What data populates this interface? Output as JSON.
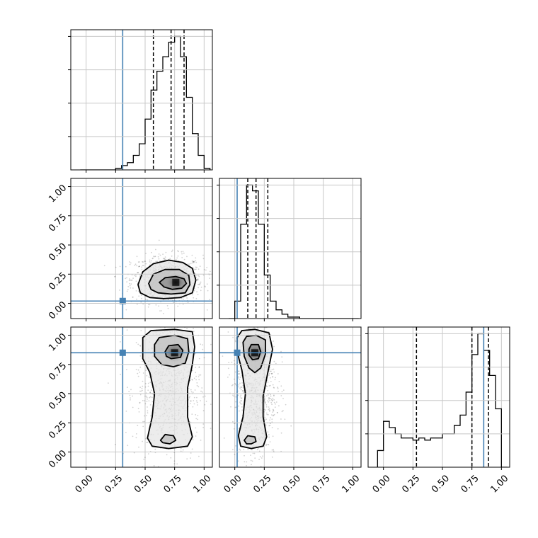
{
  "chart_data": {
    "type": "corner",
    "parameters": [
      "",
      "",
      ""
    ],
    "truths": [
      0.31,
      0.02,
      0.85
    ],
    "quantiles": [
      [
        0.57,
        0.72,
        0.83
      ],
      [
        0.11,
        0.18,
        0.28
      ],
      [
        0.28,
        0.75,
        0.89
      ]
    ],
    "ranges": [
      [
        -0.13,
        1.07
      ],
      [
        -0.13,
        1.07
      ],
      [
        -0.13,
        1.07
      ]
    ],
    "grid": true,
    "colors": {
      "truth": "#4682b4",
      "hist": "#000000",
      "quantile": "#000000",
      "density": "#000000",
      "grid": "#c8c8c8"
    },
    "ticks": {
      "values": [
        0.0,
        0.25,
        0.5,
        0.75,
        1.0
      ],
      "labels": [
        "0.00",
        "0.25",
        "0.50",
        "0.75",
        "1.00"
      ]
    },
    "histograms": [
      {
        "param": 0,
        "bin_edges": [
          -0.05,
          0.0,
          0.05,
          0.1,
          0.15,
          0.2,
          0.25,
          0.3,
          0.35,
          0.4,
          0.45,
          0.5,
          0.55,
          0.6,
          0.65,
          0.7,
          0.75,
          0.8,
          0.85,
          0.9,
          0.95,
          1.0,
          1.05
        ],
        "counts": [
          0,
          0,
          0,
          0,
          0,
          0,
          1,
          3,
          5,
          10,
          18,
          35,
          55,
          68,
          78,
          88,
          92,
          78,
          50,
          25,
          10,
          1
        ]
      },
      {
        "param": 1,
        "bin_edges": [
          -0.05,
          0.0,
          0.05,
          0.1,
          0.15,
          0.2,
          0.25,
          0.3,
          0.35,
          0.4,
          0.45,
          0.5,
          0.55,
          0.6,
          0.65,
          0.7,
          0.75,
          0.8,
          0.85,
          0.9,
          0.95,
          1.0,
          1.05
        ],
        "counts": [
          0,
          12,
          65,
          92,
          88,
          65,
          30,
          12,
          6,
          3,
          1,
          1,
          0,
          0,
          0,
          0,
          0,
          0,
          0,
          0,
          0,
          0
        ]
      },
      {
        "param": 2,
        "bin_edges": [
          -0.05,
          0.0,
          0.05,
          0.1,
          0.15,
          0.2,
          0.25,
          0.3,
          0.35,
          0.4,
          0.45,
          0.5,
          0.55,
          0.6,
          0.65,
          0.7,
          0.75,
          0.8,
          0.85,
          0.9,
          0.95,
          1.0,
          1.05
        ],
        "counts": [
          8,
          22,
          19,
          16,
          14,
          14,
          13,
          14,
          13,
          14,
          14,
          16,
          16,
          20,
          25,
          36,
          54,
          64,
          56,
          44,
          28,
          0
        ]
      }
    ],
    "panels_2d": [
      {
        "x_param": 0,
        "y_param": 1,
        "peak": [
          0.76,
          0.18
        ],
        "contours": [
          [
            [
              0.44,
              0.16
            ],
            [
              0.48,
              0.27
            ],
            [
              0.57,
              0.34
            ],
            [
              0.7,
              0.37
            ],
            [
              0.82,
              0.35
            ],
            [
              0.9,
              0.3
            ],
            [
              0.93,
              0.2
            ],
            [
              0.9,
              0.09
            ],
            [
              0.8,
              0.05
            ],
            [
              0.66,
              0.04
            ],
            [
              0.54,
              0.05
            ],
            [
              0.46,
              0.09
            ]
          ],
          [
            [
              0.53,
              0.17
            ],
            [
              0.57,
              0.25
            ],
            [
              0.67,
              0.29
            ],
            [
              0.79,
              0.29
            ],
            [
              0.87,
              0.24
            ],
            [
              0.88,
              0.16
            ],
            [
              0.84,
              0.09
            ],
            [
              0.72,
              0.08
            ],
            [
              0.61,
              0.09
            ],
            [
              0.55,
              0.12
            ]
          ],
          [
            [
              0.62,
              0.18
            ],
            [
              0.67,
              0.22
            ],
            [
              0.76,
              0.23
            ],
            [
              0.83,
              0.21
            ],
            [
              0.85,
              0.17
            ],
            [
              0.81,
              0.13
            ],
            [
              0.73,
              0.12
            ],
            [
              0.66,
              0.14
            ]
          ]
        ]
      },
      {
        "x_param": 0,
        "y_param": 2,
        "peak": [
          0.75,
          0.85
        ],
        "contours": [
          [
            [
              0.48,
              0.98
            ],
            [
              0.55,
              1.04
            ],
            [
              0.75,
              1.05
            ],
            [
              0.9,
              1.03
            ],
            [
              0.92,
              0.9
            ],
            [
              0.9,
              0.75
            ],
            [
              0.86,
              0.55
            ],
            [
              0.86,
              0.3
            ],
            [
              0.9,
              0.13
            ],
            [
              0.86,
              0.05
            ],
            [
              0.7,
              0.03
            ],
            [
              0.56,
              0.05
            ],
            [
              0.52,
              0.12
            ],
            [
              0.56,
              0.3
            ],
            [
              0.58,
              0.5
            ],
            [
              0.54,
              0.68
            ],
            [
              0.48,
              0.8
            ]
          ],
          [
            [
              0.58,
              0.92
            ],
            [
              0.62,
              0.98
            ],
            [
              0.75,
              1.0
            ],
            [
              0.86,
              0.97
            ],
            [
              0.87,
              0.86
            ],
            [
              0.84,
              0.76
            ],
            [
              0.74,
              0.73
            ],
            [
              0.64,
              0.75
            ],
            [
              0.58,
              0.82
            ]
          ],
          [
            [
              0.67,
              0.86
            ],
            [
              0.7,
              0.91
            ],
            [
              0.78,
              0.92
            ],
            [
              0.82,
              0.87
            ],
            [
              0.8,
              0.81
            ],
            [
              0.72,
              0.8
            ],
            [
              0.68,
              0.82
            ]
          ],
          [
            [
              0.63,
              0.1
            ],
            [
              0.67,
              0.15
            ],
            [
              0.74,
              0.14
            ],
            [
              0.76,
              0.1
            ],
            [
              0.71,
              0.07
            ],
            [
              0.65,
              0.08
            ]
          ]
        ]
      },
      {
        "x_param": 1,
        "y_param": 2,
        "peak": [
          0.17,
          0.85
        ],
        "contours": [
          [
            [
              0.02,
              0.98
            ],
            [
              0.06,
              1.04
            ],
            [
              0.17,
              1.05
            ],
            [
              0.29,
              1.02
            ],
            [
              0.32,
              0.88
            ],
            [
              0.28,
              0.68
            ],
            [
              0.24,
              0.48
            ],
            [
              0.24,
              0.3
            ],
            [
              0.27,
              0.13
            ],
            [
              0.24,
              0.05
            ],
            [
              0.14,
              0.03
            ],
            [
              0.05,
              0.05
            ],
            [
              0.03,
              0.14
            ],
            [
              0.07,
              0.3
            ],
            [
              0.09,
              0.5
            ],
            [
              0.06,
              0.7
            ],
            [
              0.02,
              0.86
            ]
          ],
          [
            [
              0.07,
              0.94
            ],
            [
              0.1,
              0.99
            ],
            [
              0.18,
              1.0
            ],
            [
              0.26,
              0.96
            ],
            [
              0.26,
              0.84
            ],
            [
              0.22,
              0.72
            ],
            [
              0.17,
              0.68
            ],
            [
              0.12,
              0.72
            ],
            [
              0.08,
              0.82
            ]
          ],
          [
            [
              0.12,
              0.88
            ],
            [
              0.14,
              0.92
            ],
            [
              0.2,
              0.92
            ],
            [
              0.22,
              0.86
            ],
            [
              0.2,
              0.8
            ],
            [
              0.15,
              0.79
            ],
            [
              0.12,
              0.83
            ]
          ],
          [
            [
              0.08,
              0.1
            ],
            [
              0.11,
              0.14
            ],
            [
              0.17,
              0.13
            ],
            [
              0.18,
              0.09
            ],
            [
              0.14,
              0.07
            ],
            [
              0.1,
              0.07
            ]
          ]
        ]
      }
    ]
  }
}
